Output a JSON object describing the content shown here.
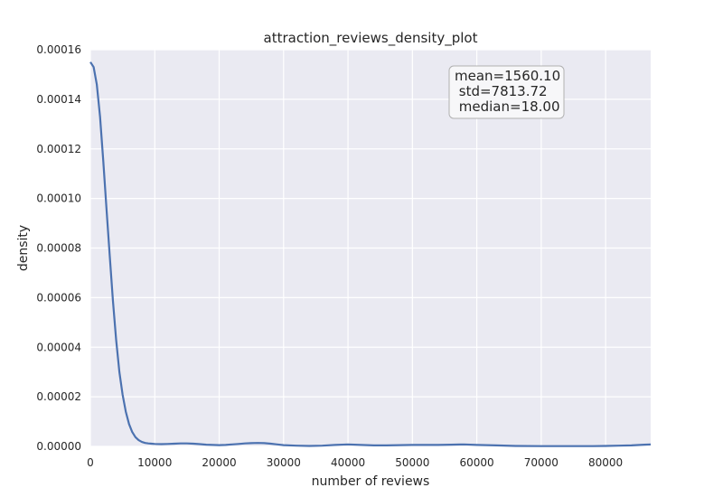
{
  "chart_data": {
    "type": "line",
    "title": "attraction_reviews_density_plot",
    "xlabel": "number of reviews",
    "ylabel": "density",
    "xlim": [
      0,
      87000
    ],
    "ylim": [
      0,
      0.00016
    ],
    "x_ticks": [
      0,
      10000,
      20000,
      30000,
      40000,
      50000,
      60000,
      70000,
      80000
    ],
    "x_tick_labels": [
      "0",
      "10000",
      "20000",
      "30000",
      "40000",
      "50000",
      "60000",
      "70000",
      "80000"
    ],
    "y_ticks": [
      0,
      2e-05,
      4e-05,
      6e-05,
      8e-05,
      0.0001,
      0.00012,
      0.00014,
      0.00016
    ],
    "y_tick_labels": [
      "0.00000",
      "0.00002",
      "0.00004",
      "0.00006",
      "0.00008",
      "0.00010",
      "0.00012",
      "0.00014",
      "0.00016"
    ],
    "grid": true,
    "series": [
      {
        "color": "#4c72b0",
        "x": [
          0,
          500,
          1000,
          1500,
          2000,
          2500,
          3000,
          3500,
          4000,
          4500,
          5000,
          5500,
          6000,
          6500,
          7000,
          7500,
          8000,
          8500,
          9000,
          9500,
          10000,
          11000,
          12000,
          13000,
          14000,
          15000,
          16000,
          17000,
          18000,
          19000,
          20000,
          21000,
          22000,
          23000,
          24000,
          25000,
          26000,
          27000,
          28000,
          29000,
          30000,
          32000,
          34000,
          36000,
          38000,
          40000,
          42000,
          44000,
          46000,
          48000,
          50000,
          52000,
          54000,
          56000,
          58000,
          60000,
          63000,
          66000,
          70000,
          74000,
          78000,
          80000,
          82000,
          84000,
          86000,
          87000
        ],
        "y": [
          0.000155,
          0.000153,
          0.000146,
          0.000133,
          0.000115,
          9.6e-05,
          7.7e-05,
          5.9e-05,
          4.3e-05,
          3e-05,
          2.1e-05,
          1.4e-05,
          9e-06,
          5.8e-06,
          3.7e-06,
          2.5e-06,
          1.8e-06,
          1.4e-06,
          1.2e-06,
          1.1e-06,
          1e-06,
          9e-07,
          1e-06,
          1.1e-06,
          1.2e-06,
          1.2e-06,
          1.1e-06,
          9e-07,
          7e-07,
          6e-07,
          5e-07,
          6e-07,
          8e-07,
          1e-06,
          1.2e-06,
          1.3e-06,
          1.4e-06,
          1.3e-06,
          1.1e-06,
          8e-07,
          5e-07,
          3e-07,
          2e-07,
          3e-07,
          6e-07,
          8e-07,
          6e-07,
          4e-07,
          4e-07,
          5e-07,
          6e-07,
          6e-07,
          6e-07,
          7e-07,
          8e-07,
          6e-07,
          4e-07,
          2e-07,
          1e-07,
          1e-07,
          1e-07,
          2e-07,
          3e-07,
          4e-07,
          7e-07,
          8e-07
        ]
      }
    ],
    "annotation": {
      "lines": [
        "mean=1560.10",
        " std=7813.72",
        " median=18.00"
      ],
      "placement": "top-right"
    },
    "colors": {
      "plot_background": "#eaeaf2",
      "grid": "#ffffff",
      "line": "#4c72b0",
      "text": "#262626",
      "annotation_box_fill": "#f7f7f9",
      "annotation_box_edge": "#b0b0b0"
    }
  }
}
